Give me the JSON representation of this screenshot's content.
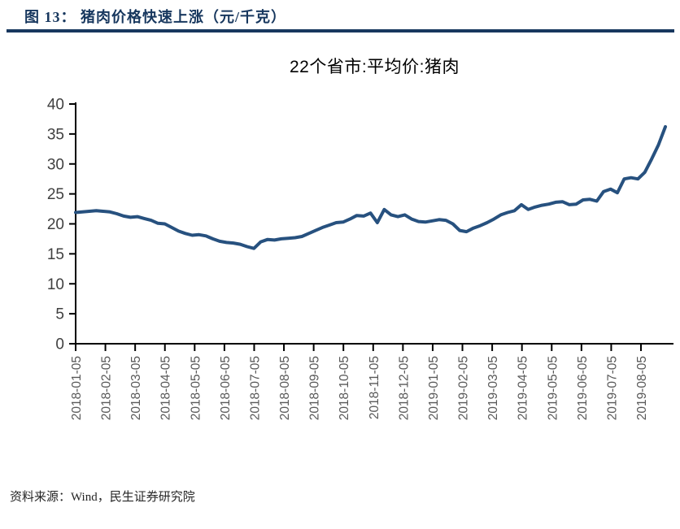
{
  "header": {
    "title": "图 13： 猪肉价格快速上涨（元/千克）"
  },
  "footer": {
    "source_text": "资料来源：Wind，民生证券研究院"
  },
  "colors": {
    "accent_navy": "#17375E",
    "line_navy": "#27517F",
    "axis_black": "#000000",
    "ytick_label_gray": "#404040",
    "xtick_label_gray": "#595959"
  },
  "chart_data": {
    "type": "line",
    "title": "22个省市:平均价:猪肉",
    "unit_label": "元/千克",
    "xlabel": "",
    "ylabel": "",
    "ylim": [
      0,
      40
    ],
    "ytick_step": 5,
    "ytick_labels": [
      "0",
      "5",
      "10",
      "15",
      "20",
      "25",
      "30",
      "35",
      "40"
    ],
    "grid": false,
    "legend_position": "none",
    "x_tick_labels": [
      "2018-01-05",
      "2018-02-05",
      "2018-03-05",
      "2018-04-05",
      "2018-05-05",
      "2018-06-05",
      "2018-07-05",
      "2018-08-05",
      "2018-09-05",
      "2018-10-05",
      "2018-11-05",
      "2018-12-05",
      "2019-01-05",
      "2019-02-05",
      "2019-03-05",
      "2019-04-05",
      "2019-05-05",
      "2019-06-05",
      "2019-07-05",
      "2019-08-05"
    ],
    "series": [
      {
        "name": "22个省市:平均价:猪肉",
        "frequency": "weekly",
        "x": [
          "2018-01-05",
          "2018-01-12",
          "2018-01-19",
          "2018-01-26",
          "2018-02-02",
          "2018-02-09",
          "2018-02-16",
          "2018-02-23",
          "2018-03-02",
          "2018-03-09",
          "2018-03-16",
          "2018-03-23",
          "2018-03-30",
          "2018-04-06",
          "2018-04-13",
          "2018-04-20",
          "2018-04-27",
          "2018-05-04",
          "2018-05-11",
          "2018-05-18",
          "2018-05-25",
          "2018-06-01",
          "2018-06-08",
          "2018-06-15",
          "2018-06-22",
          "2018-06-29",
          "2018-07-06",
          "2018-07-13",
          "2018-07-20",
          "2018-07-27",
          "2018-08-03",
          "2018-08-10",
          "2018-08-17",
          "2018-08-24",
          "2018-08-31",
          "2018-09-07",
          "2018-09-14",
          "2018-09-21",
          "2018-09-28",
          "2018-10-05",
          "2018-10-12",
          "2018-10-19",
          "2018-10-26",
          "2018-11-02",
          "2018-11-09",
          "2018-11-16",
          "2018-11-23",
          "2018-11-30",
          "2018-12-07",
          "2018-12-14",
          "2018-12-21",
          "2018-12-28",
          "2019-01-04",
          "2019-01-11",
          "2019-01-18",
          "2019-01-25",
          "2019-02-01",
          "2019-02-08",
          "2019-02-15",
          "2019-02-22",
          "2019-03-01",
          "2019-03-08",
          "2019-03-15",
          "2019-03-22",
          "2019-03-29",
          "2019-04-05",
          "2019-04-12",
          "2019-04-19",
          "2019-04-26",
          "2019-05-03",
          "2019-05-10",
          "2019-05-17",
          "2019-05-24",
          "2019-05-31",
          "2019-06-07",
          "2019-06-14",
          "2019-06-21",
          "2019-06-28",
          "2019-07-05",
          "2019-07-12",
          "2019-07-19",
          "2019-07-26",
          "2019-08-02",
          "2019-08-09",
          "2019-08-16",
          "2019-08-23",
          "2019-08-30"
        ],
        "values": [
          21.9,
          22.0,
          22.1,
          22.2,
          22.1,
          22.0,
          21.7,
          21.3,
          21.1,
          21.2,
          20.9,
          20.6,
          20.1,
          20.0,
          19.4,
          18.8,
          18.4,
          18.1,
          18.2,
          18.0,
          17.5,
          17.1,
          16.9,
          16.8,
          16.6,
          16.2,
          15.9,
          17.0,
          17.4,
          17.3,
          17.5,
          17.6,
          17.7,
          17.9,
          18.4,
          18.9,
          19.4,
          19.8,
          20.2,
          20.3,
          20.8,
          21.4,
          21.3,
          21.8,
          20.2,
          22.4,
          21.5,
          21.2,
          21.5,
          20.8,
          20.4,
          20.3,
          20.5,
          20.7,
          20.6,
          20.0,
          18.9,
          18.7,
          19.3,
          19.7,
          20.2,
          20.8,
          21.5,
          21.9,
          22.2,
          23.2,
          22.4,
          22.8,
          23.1,
          23.3,
          23.6,
          23.7,
          23.2,
          23.3,
          24.0,
          24.1,
          23.8,
          25.4,
          25.8,
          25.2,
          27.5,
          27.7,
          27.5,
          28.6,
          30.8,
          33.2,
          36.2
        ]
      }
    ]
  }
}
